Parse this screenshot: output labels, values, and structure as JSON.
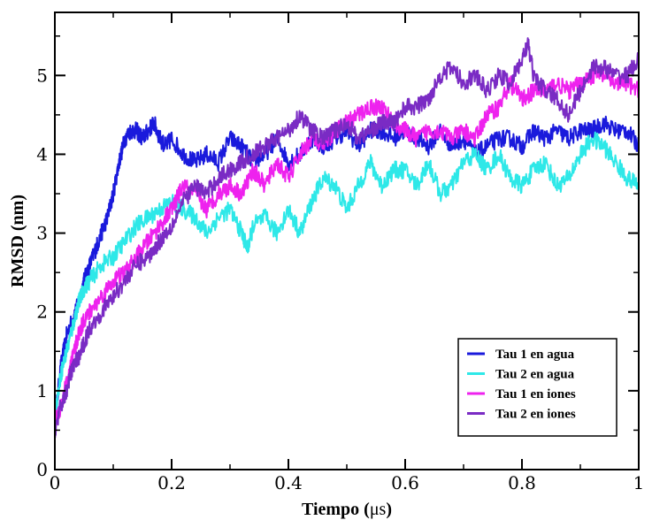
{
  "chart_data": {
    "type": "line",
    "title": "",
    "xlabel_prefix": "Tiempo (",
    "xlabel_unit": "μs",
    "xlabel_suffix": ")",
    "ylabel": "RMSD (nm)",
    "xlim": [
      0,
      1
    ],
    "ylim": [
      0,
      5.8
    ],
    "xticks": [
      0,
      0.2,
      0.4,
      0.6,
      0.8,
      1
    ],
    "xtick_labels": [
      "0",
      "0.2",
      "0.4",
      "0.6",
      "0.8",
      "1"
    ],
    "yticks": [
      0,
      1,
      2,
      3,
      4,
      5
    ],
    "ytick_labels": [
      "0",
      "1",
      "2",
      "3",
      "4",
      "5"
    ],
    "legend_position": "bottom-right",
    "grid": false,
    "series": [
      {
        "name": "Tau 1 en agua",
        "color": "#1a1adc",
        "x": [
          0,
          0.01,
          0.02,
          0.03,
          0.04,
          0.05,
          0.06,
          0.07,
          0.08,
          0.09,
          0.1,
          0.11,
          0.12,
          0.13,
          0.14,
          0.15,
          0.16,
          0.17,
          0.18,
          0.19,
          0.2,
          0.22,
          0.24,
          0.26,
          0.28,
          0.3,
          0.32,
          0.34,
          0.36,
          0.38,
          0.4,
          0.42,
          0.44,
          0.46,
          0.48,
          0.5,
          0.52,
          0.54,
          0.56,
          0.58,
          0.6,
          0.62,
          0.64,
          0.66,
          0.68,
          0.7,
          0.72,
          0.74,
          0.76,
          0.78,
          0.8,
          0.82,
          0.84,
          0.86,
          0.88,
          0.9,
          0.92,
          0.94,
          0.96,
          0.98,
          1.0
        ],
        "y": [
          0.6,
          1.3,
          1.7,
          1.9,
          2.1,
          2.4,
          2.6,
          2.8,
          3.0,
          3.2,
          3.5,
          3.9,
          4.2,
          4.3,
          4.3,
          4.2,
          4.3,
          4.4,
          4.2,
          4.1,
          4.2,
          4.0,
          3.9,
          4.0,
          3.9,
          4.2,
          4.1,
          3.9,
          4.0,
          4.2,
          3.9,
          4.0,
          4.2,
          4.1,
          4.2,
          4.3,
          4.1,
          4.3,
          4.3,
          4.2,
          4.3,
          4.2,
          4.1,
          4.3,
          4.1,
          4.2,
          4.0,
          4.1,
          4.2,
          4.2,
          4.1,
          4.3,
          4.2,
          4.3,
          4.2,
          4.3,
          4.3,
          4.4,
          4.3,
          4.3,
          4.1
        ]
      },
      {
        "name": "Tau 2 en agua",
        "color": "#2ee8e8",
        "x": [
          0,
          0.01,
          0.02,
          0.03,
          0.04,
          0.05,
          0.06,
          0.08,
          0.1,
          0.12,
          0.14,
          0.16,
          0.18,
          0.2,
          0.22,
          0.24,
          0.26,
          0.28,
          0.3,
          0.32,
          0.33,
          0.34,
          0.36,
          0.38,
          0.4,
          0.42,
          0.44,
          0.46,
          0.48,
          0.5,
          0.52,
          0.54,
          0.56,
          0.58,
          0.6,
          0.62,
          0.64,
          0.66,
          0.68,
          0.7,
          0.72,
          0.74,
          0.76,
          0.78,
          0.8,
          0.82,
          0.84,
          0.86,
          0.88,
          0.9,
          0.92,
          0.94,
          0.96,
          0.98,
          1.0
        ],
        "y": [
          0.7,
          1.2,
          1.5,
          1.8,
          2.1,
          2.3,
          2.4,
          2.6,
          2.7,
          2.9,
          3.1,
          3.2,
          3.3,
          3.4,
          3.3,
          3.2,
          3.0,
          3.2,
          3.3,
          3.0,
          2.8,
          3.1,
          3.2,
          3.0,
          3.3,
          3.0,
          3.4,
          3.7,
          3.6,
          3.3,
          3.6,
          3.9,
          3.6,
          3.8,
          3.8,
          3.6,
          3.9,
          3.5,
          3.6,
          3.9,
          4.0,
          3.8,
          4.0,
          3.7,
          3.6,
          3.8,
          3.9,
          3.6,
          3.7,
          4.0,
          4.2,
          4.1,
          3.9,
          3.7,
          3.6
        ]
      },
      {
        "name": "Tau 1 en iones",
        "color": "#ee22ee",
        "x": [
          0,
          0.01,
          0.02,
          0.03,
          0.04,
          0.05,
          0.06,
          0.08,
          0.1,
          0.12,
          0.14,
          0.16,
          0.18,
          0.2,
          0.22,
          0.24,
          0.26,
          0.28,
          0.3,
          0.32,
          0.34,
          0.36,
          0.38,
          0.4,
          0.42,
          0.44,
          0.46,
          0.48,
          0.5,
          0.52,
          0.54,
          0.56,
          0.58,
          0.6,
          0.62,
          0.64,
          0.66,
          0.68,
          0.7,
          0.72,
          0.74,
          0.76,
          0.78,
          0.8,
          0.82,
          0.84,
          0.86,
          0.88,
          0.9,
          0.92,
          0.94,
          0.96,
          0.98,
          1.0
        ],
        "y": [
          0.6,
          0.8,
          1.1,
          1.4,
          1.7,
          1.9,
          2.0,
          2.2,
          2.4,
          2.5,
          2.7,
          2.9,
          3.1,
          3.3,
          3.6,
          3.5,
          3.3,
          3.5,
          3.6,
          3.5,
          3.8,
          3.6,
          3.9,
          3.7,
          4.0,
          4.2,
          4.1,
          4.3,
          4.4,
          4.5,
          4.6,
          4.6,
          4.4,
          4.3,
          4.2,
          4.3,
          4.3,
          4.2,
          4.3,
          4.2,
          4.5,
          4.6,
          4.9,
          4.7,
          4.8,
          4.8,
          4.9,
          4.8,
          4.9,
          5.0,
          5.0,
          4.9,
          4.9,
          4.8
        ]
      },
      {
        "name": "Tau 2 en iones",
        "color": "#7a2bc4",
        "x": [
          0,
          0.01,
          0.02,
          0.03,
          0.04,
          0.05,
          0.06,
          0.08,
          0.1,
          0.12,
          0.14,
          0.16,
          0.18,
          0.2,
          0.22,
          0.24,
          0.26,
          0.28,
          0.3,
          0.32,
          0.34,
          0.36,
          0.38,
          0.4,
          0.42,
          0.44,
          0.46,
          0.48,
          0.5,
          0.52,
          0.54,
          0.56,
          0.58,
          0.6,
          0.62,
          0.64,
          0.66,
          0.68,
          0.7,
          0.72,
          0.74,
          0.76,
          0.78,
          0.8,
          0.81,
          0.82,
          0.84,
          0.86,
          0.88,
          0.9,
          0.92,
          0.94,
          0.96,
          0.98,
          1.0
        ],
        "y": [
          0.5,
          0.8,
          1.0,
          1.3,
          1.4,
          1.6,
          1.8,
          2.0,
          2.2,
          2.4,
          2.6,
          2.7,
          2.9,
          3.1,
          3.4,
          3.6,
          3.5,
          3.7,
          3.8,
          3.9,
          4.0,
          4.1,
          4.2,
          4.3,
          4.5,
          4.3,
          4.2,
          4.3,
          4.4,
          4.2,
          4.3,
          4.4,
          4.4,
          4.6,
          4.6,
          4.7,
          5.0,
          5.1,
          4.9,
          5.0,
          4.8,
          5.0,
          4.9,
          5.2,
          5.4,
          5.0,
          4.8,
          4.7,
          4.5,
          4.8,
          5.1,
          5.1,
          5.0,
          5.0,
          5.2
        ]
      }
    ]
  }
}
